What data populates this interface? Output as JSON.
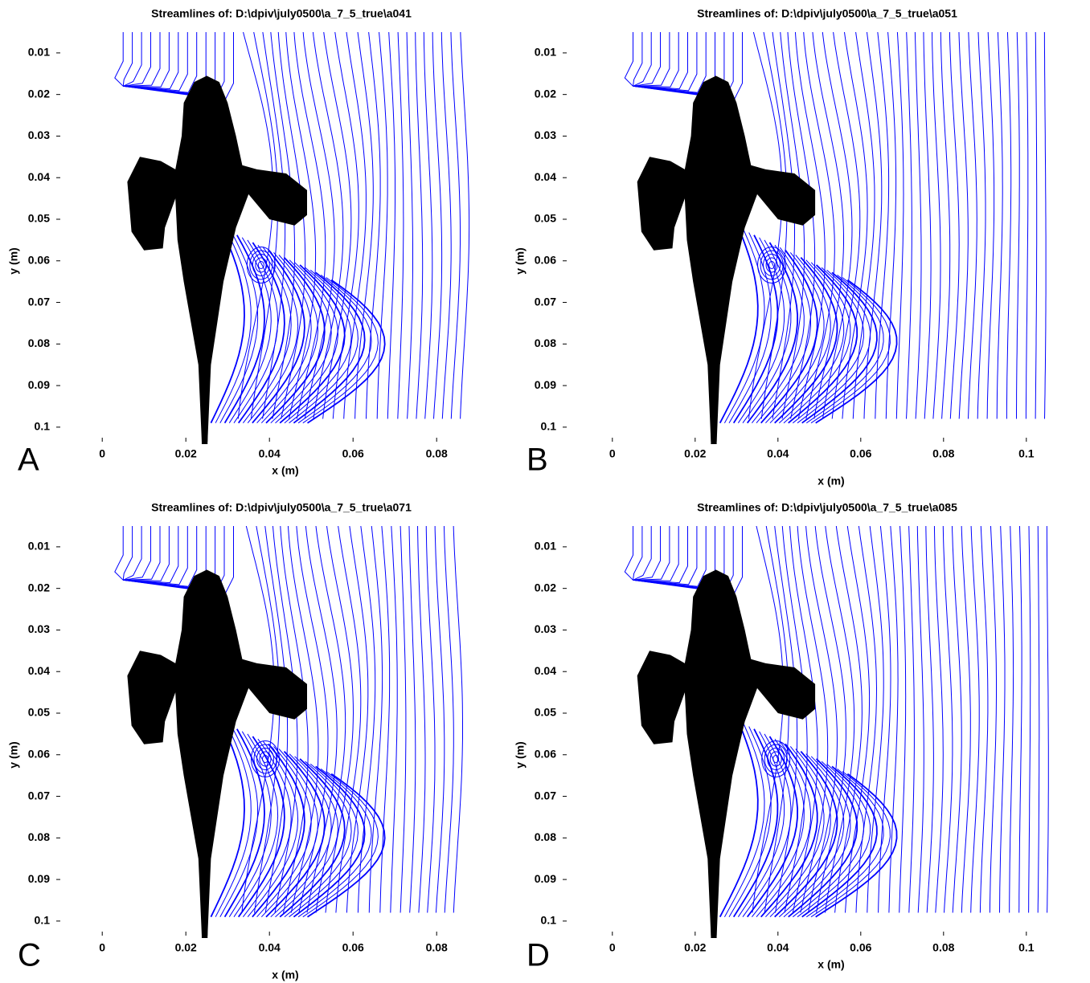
{
  "chart_data": [
    {
      "type": "streamline",
      "panel": "A",
      "title": "Streamlines of: D:\\dpiv\\july0500\\a_7_5_true\\a041",
      "xlabel": "x (m)",
      "ylabel": "y (m)",
      "xlim": [
        -0.011,
        0.089
      ],
      "ylim": [
        0.005,
        0.1035
      ],
      "y_inverted": true,
      "xticks": [
        0,
        0.02,
        0.04,
        0.06,
        0.08
      ],
      "yticks": [
        0.01,
        0.02,
        0.03,
        0.04,
        0.05,
        0.06,
        0.07,
        0.08,
        0.09,
        0.1
      ],
      "color": "#0000ff"
    },
    {
      "type": "streamline",
      "panel": "B",
      "title": "Streamlines of: D:\\dpiv\\july0500\\a_7_5_true\\a051",
      "xlabel": "x (m)",
      "ylabel": "y (m)",
      "xlim": [
        -0.012,
        0.108
      ],
      "ylim": [
        0.005,
        0.1035
      ],
      "y_inverted": true,
      "xticks": [
        0,
        0.02,
        0.04,
        0.06,
        0.08,
        0.1
      ],
      "yticks": [
        0.01,
        0.02,
        0.03,
        0.04,
        0.05,
        0.06,
        0.07,
        0.08,
        0.09,
        0.1
      ],
      "color": "#0000ff"
    },
    {
      "type": "streamline",
      "panel": "C",
      "title": "Streamlines of: D:\\dpiv\\july0500\\a_7_5_true\\a071",
      "xlabel": "x (m)",
      "ylabel": "y (m)",
      "xlim": [
        -0.011,
        0.089
      ],
      "ylim": [
        0.005,
        0.1035
      ],
      "y_inverted": true,
      "xticks": [
        0,
        0.02,
        0.04,
        0.06,
        0.08
      ],
      "yticks": [
        0.01,
        0.02,
        0.03,
        0.04,
        0.05,
        0.06,
        0.07,
        0.08,
        0.09,
        0.1
      ],
      "color": "#0000ff"
    },
    {
      "type": "streamline",
      "panel": "D",
      "title": "Streamlines of: D:\\dpiv\\july0500\\a_7_5_true\\a085",
      "xlabel": "x (m)",
      "ylabel": "y (m)",
      "xlim": [
        -0.012,
        0.108
      ],
      "ylim": [
        0.005,
        0.1035
      ],
      "y_inverted": true,
      "xticks": [
        0,
        0.02,
        0.04,
        0.06,
        0.08,
        0.1
      ],
      "yticks": [
        0.01,
        0.02,
        0.03,
        0.04,
        0.05,
        0.06,
        0.07,
        0.08,
        0.09,
        0.1
      ],
      "color": "#0000ff"
    }
  ]
}
